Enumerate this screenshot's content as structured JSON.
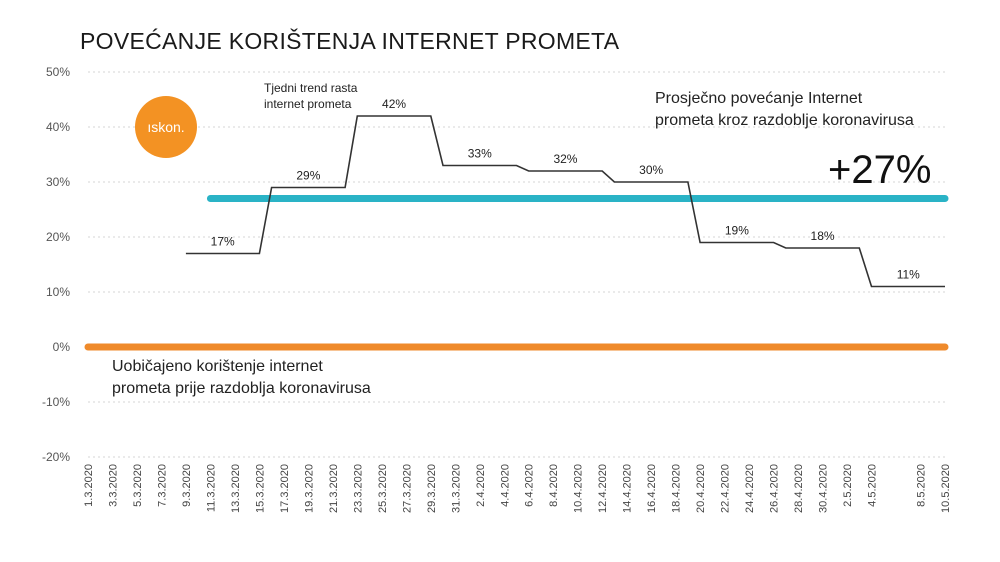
{
  "colors": {
    "line": "#333333",
    "average": "#2ab3c6",
    "baseline": "#ef8a2b",
    "grid": "#d6d6d6",
    "logo": "#f39223"
  },
  "logo": {
    "text": "ıskon."
  },
  "chart_data": {
    "type": "line",
    "title": "POVEĆANJE KORIŠTENJA INTERNET PROMETA",
    "xlabel": "",
    "ylabel": "",
    "ylim": [
      -20,
      50
    ],
    "yticks": [
      -20,
      -10,
      0,
      10,
      20,
      30,
      40,
      50
    ],
    "ytick_labels": [
      "-20%",
      "-10%",
      "0%",
      "10%",
      "20%",
      "30%",
      "40%",
      "50%"
    ],
    "grid": "horizontal-dotted",
    "x_dates": [
      "1.3.2020",
      "3.3.2020",
      "5.3.2020",
      "7.3.2020",
      "9.3.2020",
      "11.3.2020",
      "13.3.2020",
      "15.3.2020",
      "17.3.2020",
      "19.3.2020",
      "21.3.2020",
      "23.3.2020",
      "25.3.2020",
      "27.3.2020",
      "29.3.2020",
      "31.3.2020",
      "2.4.2020",
      "4.4.2020",
      "6.4.2020",
      "8.4.2020",
      "10.4.2020",
      "12.4.2020",
      "14.4.2020",
      "16.4.2020",
      "18.4.2020",
      "20.4.2020",
      "22.4.2020",
      "24.4.2020",
      "26.4.2020",
      "28.4.2020",
      "30.4.2020",
      "2.5.2020",
      "4.5.2020",
      "8.5.2020",
      "10.5.2020"
    ],
    "series": [
      {
        "points": [
          {
            "x": "9.3.2020",
            "y": 17
          },
          {
            "x": "15.3.2020",
            "y": 17
          },
          {
            "x": "16.3.2020",
            "y": 29
          },
          {
            "x": "22.3.2020",
            "y": 29
          },
          {
            "x": "23.3.2020",
            "y": 42
          },
          {
            "x": "29.3.2020",
            "y": 42
          },
          {
            "x": "30.3.2020",
            "y": 33
          },
          {
            "x": "5.4.2020",
            "y": 33
          },
          {
            "x": "6.4.2020",
            "y": 32
          },
          {
            "x": "12.4.2020",
            "y": 32
          },
          {
            "x": "13.4.2020",
            "y": 30
          },
          {
            "x": "19.4.2020",
            "y": 30
          },
          {
            "x": "20.4.2020",
            "y": 19
          },
          {
            "x": "26.4.2020",
            "y": 19
          },
          {
            "x": "27.4.2020",
            "y": 18
          },
          {
            "x": "3.5.2020",
            "y": 18
          },
          {
            "x": "4.5.2020",
            "y": 11
          },
          {
            "x": "10.5.2020",
            "y": 11
          }
        ]
      }
    ],
    "data_labels": [
      {
        "x": "12.3.2020",
        "y": 17,
        "text": "17%"
      },
      {
        "x": "19.3.2020",
        "y": 29,
        "text": "29%"
      },
      {
        "x": "26.3.2020",
        "y": 42,
        "text": "42%"
      },
      {
        "x": "2.4.2020",
        "y": 33,
        "text": "33%"
      },
      {
        "x": "9.4.2020",
        "y": 32,
        "text": "32%"
      },
      {
        "x": "16.4.2020",
        "y": 30,
        "text": "30%"
      },
      {
        "x": "23.4.2020",
        "y": 19,
        "text": "19%"
      },
      {
        "x": "30.4.2020",
        "y": 18,
        "text": "18%"
      },
      {
        "x": "7.5.2020",
        "y": 11,
        "text": "11%"
      }
    ],
    "reference_lines": [
      {
        "y": 27,
        "from": "11.3.2020",
        "to": "10.5.2020"
      },
      {
        "y": 0,
        "from": "1.3.2020",
        "to": "10.5.2020"
      }
    ],
    "annotations": {
      "weekly_trend": [
        "Tjedni trend rasta",
        "internet prometa"
      ],
      "average_text": [
        "Prosječno povećanje Internet",
        "prometa kroz razdoblje koronavirusa"
      ],
      "average_value": "+27%",
      "baseline_text": [
        "Uobičajeno korištenje internet",
        "prometa prije razdoblja koronavirusa"
      ]
    }
  }
}
